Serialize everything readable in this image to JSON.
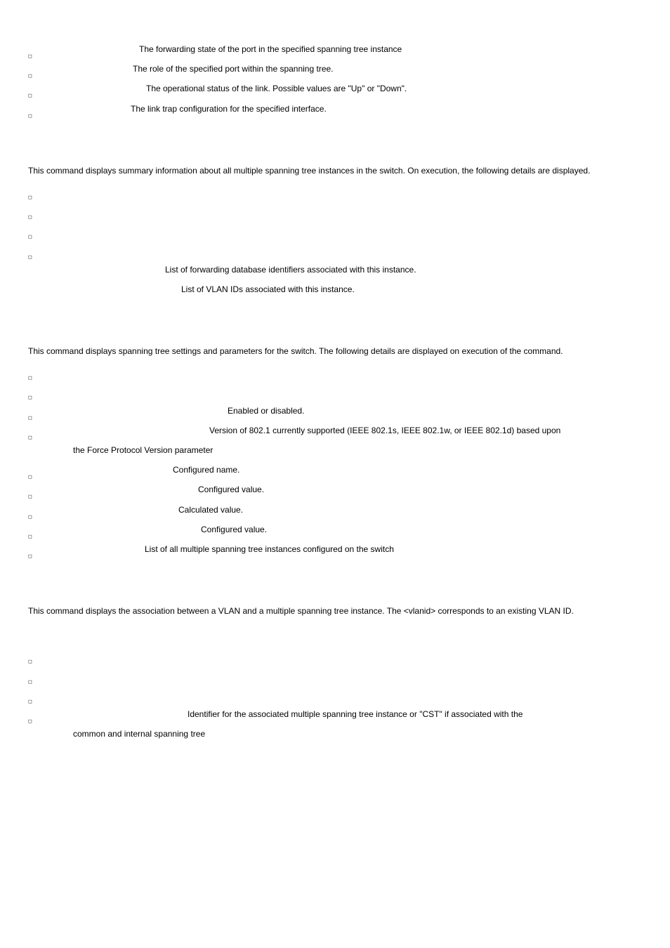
{
  "section1": {
    "items": [
      {
        "indentClass": "ind-94",
        "text": "The forwarding state of the port in the specified spanning tree instance"
      },
      {
        "indentClass": "ind-85",
        "text": "The role of the specified port within the spanning tree."
      },
      {
        "indentClass": "ind-104",
        "text": "The operational status of the link. Possible values are \"Up\" or \"Down\"."
      },
      {
        "indentClass": "ind-82",
        "text": "The link trap configuration for the specified interface."
      }
    ]
  },
  "section2": {
    "intro": "This command displays summary information about all multiple spanning tree instances in the switch. On execution, the following details are displayed.",
    "blank_bullets": 4,
    "free_lines": [
      {
        "offsetClass": "offset-195",
        "text": "List of forwarding database identifiers associated with this instance."
      },
      {
        "offsetClass": "offset-218",
        "text": "List of VLAN IDs associated with this instance."
      }
    ]
  },
  "section3": {
    "intro": "This command displays spanning tree settings and parameters for the switch. The following details are displayed on execution of the command.",
    "items": [
      {
        "indentClass": "",
        "text": ""
      },
      {
        "indentClass": "",
        "text": ""
      },
      {
        "indentClass": "ind-220",
        "text": "Enabled or disabled."
      },
      {
        "indentClass": "ind-194",
        "text": "Version of 802.1 currently supported (IEEE 802.1s, IEEE 802.1w, or IEEE 802.1d) based upon",
        "continuation": "the Force Protocol Version parameter"
      },
      {
        "indentClass": "ind-142",
        "text": "Configured name."
      },
      {
        "indentClass": "ind-178",
        "text": "Configured value."
      },
      {
        "indentClass": "ind-150",
        "text": "Calculated value."
      },
      {
        "indentClass": "ind-182",
        "text": "Configured value."
      },
      {
        "indentClass": "ind-102",
        "text": "List of all multiple spanning tree instances configured on the switch"
      }
    ]
  },
  "section4": {
    "intro": "This command displays the association between a VLAN and a multiple spanning tree instance. The <vlanid> corresponds to an existing VLAN ID.",
    "items": [
      {
        "indentClass": "",
        "text": ""
      },
      {
        "indentClass": "",
        "text": ""
      },
      {
        "indentClass": "",
        "text": ""
      },
      {
        "indentClass": "ind-163",
        "text": "Identifier for the associated multiple spanning tree instance or \"CST\" if associated with the",
        "continuation": "common and internal spanning tree"
      }
    ]
  }
}
